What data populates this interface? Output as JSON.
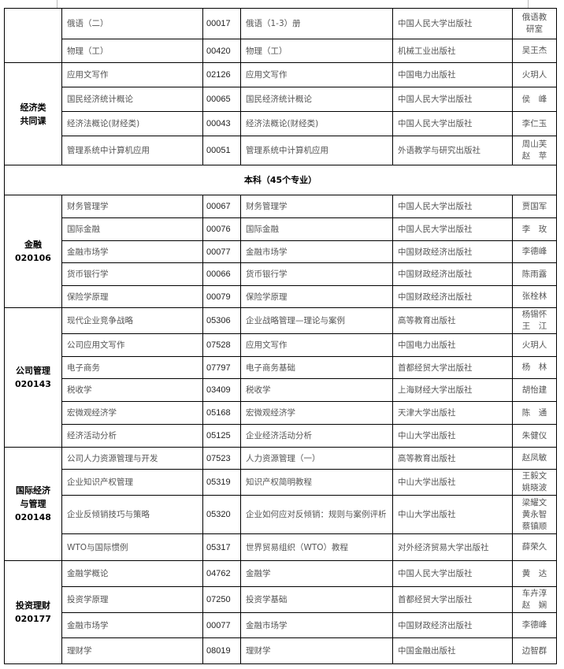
{
  "section_title": "本科（45个专业）",
  "groups_before": [
    {
      "label": "",
      "code": "",
      "rows": [
        {
          "course": "俄语（二）",
          "code": "00017",
          "textbook": "俄语（1-3）册",
          "publisher": "中国人民大学出版社",
          "author": "俄语教\n研室"
        },
        {
          "course": "物理（工）",
          "code": "00420",
          "textbook": "物理（工）",
          "publisher": "机械工业出版社",
          "author": "吴王杰"
        }
      ]
    },
    {
      "label": "经济类\n共同课",
      "code": "",
      "rows": [
        {
          "course": "应用文写作",
          "code": "02126",
          "textbook": "应用文写作",
          "publisher": "中国电力出版社",
          "author": "火玥人"
        },
        {
          "course": "国民经济统计概论",
          "code": "00065",
          "textbook": "国民经济统计概论",
          "publisher": "中国人民大学出版社",
          "author": "侯　峰"
        },
        {
          "course": "经济法概论(财经类)",
          "code": "00043",
          "textbook": "经济法概论(财经类)",
          "publisher": "中国人民大学出版社",
          "author": "李仁玉"
        },
        {
          "course": "管理系统中计算机应用",
          "code": "00051",
          "textbook": "管理系统中计算机应用",
          "publisher": "外语教学与研究出版社",
          "author": "周山芙\n赵　苹"
        }
      ]
    }
  ],
  "groups_after": [
    {
      "label": "金融",
      "code": "020106",
      "rows": [
        {
          "course": "财务管理学",
          "code": "00067",
          "textbook": "财务管理学",
          "publisher": "中国人民大学出版社",
          "author": "贾国军"
        },
        {
          "course": "国际金融",
          "code": "00076",
          "textbook": "国际金融",
          "publisher": "中国人民大学出版社",
          "author": "李　玫"
        },
        {
          "course": "金融市场学",
          "code": "00077",
          "textbook": "金融市场学",
          "publisher": "中国财政经济出版社",
          "author": "李德峰"
        },
        {
          "course": "货币银行学",
          "code": "00066",
          "textbook": "货币银行学",
          "publisher": "中国财政经济出版社",
          "author": "陈雨露"
        },
        {
          "course": "保险学原理",
          "code": "00079",
          "textbook": "保险学原理",
          "publisher": "中国财政经济出版社",
          "author": "张栓林"
        }
      ]
    },
    {
      "label": "公司管理",
      "code": "020143",
      "rows": [
        {
          "course": "现代企业竞争战略",
          "code": "05306",
          "textbook": "企业战略管理—理论与案例",
          "publisher": "高等教育出版社",
          "author": "杨锡怀\n王　江"
        },
        {
          "course": "公司应用文写作",
          "code": "07528",
          "textbook": "应用文写作",
          "publisher": "中国电力出版社",
          "author": "火玥人"
        },
        {
          "course": "电子商务",
          "code": "07797",
          "textbook": "电子商务基础",
          "publisher": "首都经贸大学出版社",
          "author": "杨　林"
        },
        {
          "course": "税收学",
          "code": "03409",
          "textbook": "税收学",
          "publisher": "上海财经大学出版社",
          "author": "胡怡建"
        },
        {
          "course": "宏微观经济学",
          "code": "05168",
          "textbook": "宏微观经济学",
          "publisher": "天津大学出版社",
          "author": "陈　通"
        },
        {
          "course": "经济活动分析",
          "code": "05125",
          "textbook": "企业经济活动分析",
          "publisher": "中山大学出版社",
          "author": "朱健仪"
        }
      ]
    },
    {
      "label": "国际经济\n与管理",
      "code": "020148",
      "rows": [
        {
          "course": "公司人力资源管理与开发",
          "code": "07523",
          "textbook": "人力资源管理（一）",
          "publisher": "高等教育出版社",
          "author": "赵凤敏"
        },
        {
          "course": "企业知识产权管理",
          "code": "05319",
          "textbook": "知识产权简明教程",
          "publisher": "中山大学出版社",
          "author": "王毅文\n姚晓波"
        },
        {
          "course": "企业反倾销技巧与策略",
          "code": "05320",
          "textbook": "企业如何应对反倾销：规则与案例评析",
          "publisher": "中山大学出版社",
          "author": "梁耀文\n黄永智\n蔡镇顺"
        },
        {
          "course": "WTO与国际惯例",
          "code": "05317",
          "textbook": "世界贸易组织（WTO）教程",
          "publisher": "对外经济贸易大学出版社",
          "author": "薛荣久"
        }
      ]
    },
    {
      "label": "投资理财",
      "code": "020177",
      "rows": [
        {
          "course": "金融学概论",
          "code": "04762",
          "textbook": "金融学",
          "publisher": "中国人民大学出版社",
          "author": "黄　达"
        },
        {
          "course": "投资学原理",
          "code": "07250",
          "textbook": "投资学基础",
          "publisher": "首都经贸大学出版社",
          "author": "车卉淳\n赵　娴"
        },
        {
          "course": "金融市场学",
          "code": "00077",
          "textbook": "金融市场学",
          "publisher": "中国财政经济出版社",
          "author": "李德峰"
        },
        {
          "course": "理财学",
          "code": "08019",
          "textbook": "理财学",
          "publisher": "中国金融出版社",
          "author": "边智群"
        }
      ]
    }
  ]
}
